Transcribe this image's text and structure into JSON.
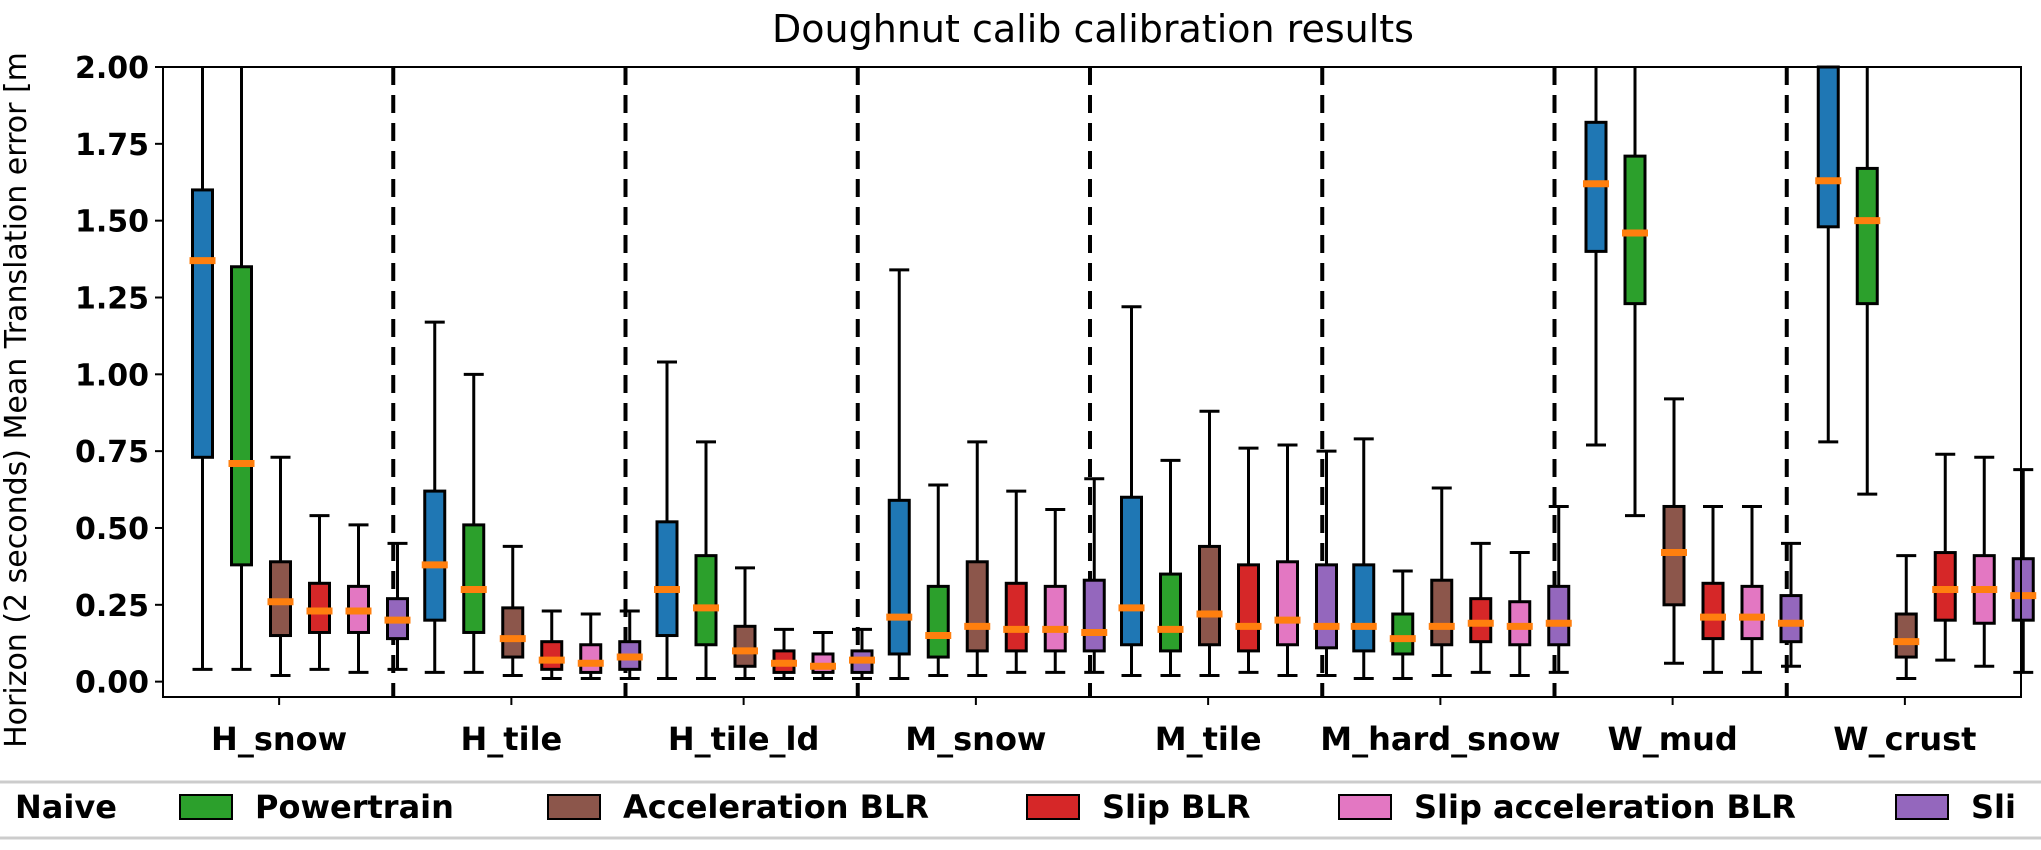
{
  "chart_data": {
    "type": "box",
    "title": "Doughnut calib calibration results",
    "ylabel": "Horizon (2 seconds) Mean Translation error [m]",
    "ylabel_visible": "Horizon (2 seconds) Mean Translation error [m",
    "xlabel": "",
    "ylim": [
      -0.05,
      2.0
    ],
    "yticks": [
      "0.00",
      "0.25",
      "0.50",
      "0.75",
      "1.00",
      "1.25",
      "1.50",
      "1.75",
      "2.00"
    ],
    "grid": false,
    "legend_position": "bottom",
    "categories": [
      "H_snow",
      "H_tile",
      "H_tile_ld",
      "M_snow",
      "M_tile",
      "M_hard_snow",
      "W_mud",
      "W_crust"
    ],
    "series": [
      {
        "name": "Naive",
        "color": "#1f77b4",
        "boxes": [
          {
            "whislo": 0.04,
            "q1": 0.73,
            "med": 1.37,
            "q3": 1.6,
            "whishi": 2.0
          },
          {
            "whislo": 0.03,
            "q1": 0.2,
            "med": 0.38,
            "q3": 0.62,
            "whishi": 1.17
          },
          {
            "whislo": 0.01,
            "q1": 0.15,
            "med": 0.3,
            "q3": 0.52,
            "whishi": 1.04
          },
          {
            "whislo": 0.01,
            "q1": 0.09,
            "med": 0.21,
            "q3": 0.59,
            "whishi": 1.34
          },
          {
            "whislo": 0.02,
            "q1": 0.12,
            "med": 0.24,
            "q3": 0.6,
            "whishi": 1.22
          },
          {
            "whislo": 0.01,
            "q1": 0.1,
            "med": 0.18,
            "q3": 0.38,
            "whishi": 0.79
          },
          {
            "whislo": 0.77,
            "q1": 1.4,
            "med": 1.62,
            "q3": 1.82,
            "whishi": 2.0
          },
          {
            "whislo": 0.78,
            "q1": 1.48,
            "med": 1.63,
            "q3": 2.0,
            "whishi": 2.0
          }
        ]
      },
      {
        "name": "Powertrain",
        "color": "#2ca02c",
        "boxes": [
          {
            "whislo": 0.04,
            "q1": 0.38,
            "med": 0.71,
            "q3": 1.35,
            "whishi": 2.0
          },
          {
            "whislo": 0.03,
            "q1": 0.16,
            "med": 0.3,
            "q3": 0.51,
            "whishi": 1.0
          },
          {
            "whislo": 0.01,
            "q1": 0.12,
            "med": 0.24,
            "q3": 0.41,
            "whishi": 0.78
          },
          {
            "whislo": 0.02,
            "q1": 0.08,
            "med": 0.15,
            "q3": 0.31,
            "whishi": 0.64
          },
          {
            "whislo": 0.02,
            "q1": 0.1,
            "med": 0.17,
            "q3": 0.35,
            "whishi": 0.72
          },
          {
            "whislo": 0.01,
            "q1": 0.09,
            "med": 0.14,
            "q3": 0.22,
            "whishi": 0.36
          },
          {
            "whislo": 0.54,
            "q1": 1.23,
            "med": 1.46,
            "q3": 1.71,
            "whishi": 2.0
          },
          {
            "whislo": 0.61,
            "q1": 1.23,
            "med": 1.5,
            "q3": 1.67,
            "whishi": 2.0
          }
        ]
      },
      {
        "name": "Acceleration BLR",
        "color": "#8c564b",
        "boxes": [
          {
            "whislo": 0.02,
            "q1": 0.15,
            "med": 0.26,
            "q3": 0.39,
            "whishi": 0.73
          },
          {
            "whislo": 0.02,
            "q1": 0.08,
            "med": 0.14,
            "q3": 0.24,
            "whishi": 0.44
          },
          {
            "whislo": 0.01,
            "q1": 0.05,
            "med": 0.1,
            "q3": 0.18,
            "whishi": 0.37
          },
          {
            "whislo": 0.02,
            "q1": 0.1,
            "med": 0.18,
            "q3": 0.39,
            "whishi": 0.78
          },
          {
            "whislo": 0.02,
            "q1": 0.12,
            "med": 0.22,
            "q3": 0.44,
            "whishi": 0.88
          },
          {
            "whislo": 0.02,
            "q1": 0.12,
            "med": 0.18,
            "q3": 0.33,
            "whishi": 0.63
          },
          {
            "whislo": 0.06,
            "q1": 0.25,
            "med": 0.42,
            "q3": 0.57,
            "whishi": 0.92
          },
          {
            "whislo": 0.01,
            "q1": 0.08,
            "med": 0.13,
            "q3": 0.22,
            "whishi": 0.41
          }
        ]
      },
      {
        "name": "Slip BLR",
        "color": "#d62728",
        "boxes": [
          {
            "whislo": 0.04,
            "q1": 0.16,
            "med": 0.23,
            "q3": 0.32,
            "whishi": 0.54
          },
          {
            "whislo": 0.01,
            "q1": 0.04,
            "med": 0.07,
            "q3": 0.13,
            "whishi": 0.23
          },
          {
            "whislo": 0.01,
            "q1": 0.03,
            "med": 0.06,
            "q3": 0.1,
            "whishi": 0.17
          },
          {
            "whislo": 0.03,
            "q1": 0.1,
            "med": 0.17,
            "q3": 0.32,
            "whishi": 0.62
          },
          {
            "whislo": 0.03,
            "q1": 0.1,
            "med": 0.18,
            "q3": 0.38,
            "whishi": 0.76
          },
          {
            "whislo": 0.03,
            "q1": 0.13,
            "med": 0.19,
            "q3": 0.27,
            "whishi": 0.45
          },
          {
            "whislo": 0.03,
            "q1": 0.14,
            "med": 0.21,
            "q3": 0.32,
            "whishi": 0.57
          },
          {
            "whislo": 0.07,
            "q1": 0.2,
            "med": 0.3,
            "q3": 0.42,
            "whishi": 0.74
          }
        ]
      },
      {
        "name": "Slip acceleration BLR",
        "color": "#e377c2",
        "boxes": [
          {
            "whislo": 0.03,
            "q1": 0.16,
            "med": 0.23,
            "q3": 0.31,
            "whishi": 0.51
          },
          {
            "whislo": 0.01,
            "q1": 0.03,
            "med": 0.06,
            "q3": 0.12,
            "whishi": 0.22
          },
          {
            "whislo": 0.01,
            "q1": 0.03,
            "med": 0.05,
            "q3": 0.09,
            "whishi": 0.16
          },
          {
            "whislo": 0.03,
            "q1": 0.1,
            "med": 0.17,
            "q3": 0.31,
            "whishi": 0.56
          },
          {
            "whislo": 0.02,
            "q1": 0.12,
            "med": 0.2,
            "q3": 0.39,
            "whishi": 0.77
          },
          {
            "whislo": 0.02,
            "q1": 0.12,
            "med": 0.18,
            "q3": 0.26,
            "whishi": 0.42
          },
          {
            "whislo": 0.03,
            "q1": 0.14,
            "med": 0.21,
            "q3": 0.31,
            "whishi": 0.57
          },
          {
            "whislo": 0.05,
            "q1": 0.19,
            "med": 0.3,
            "q3": 0.41,
            "whishi": 0.73
          }
        ]
      },
      {
        "name": "Sli",
        "color": "#9467bd",
        "boxes": [
          {
            "whislo": 0.04,
            "q1": 0.14,
            "med": 0.2,
            "q3": 0.27,
            "whishi": 0.45
          },
          {
            "whislo": 0.01,
            "q1": 0.04,
            "med": 0.08,
            "q3": 0.13,
            "whishi": 0.23
          },
          {
            "whislo": 0.01,
            "q1": 0.03,
            "med": 0.07,
            "q3": 0.1,
            "whishi": 0.17
          },
          {
            "whislo": 0.03,
            "q1": 0.1,
            "med": 0.16,
            "q3": 0.33,
            "whishi": 0.66
          },
          {
            "whislo": 0.02,
            "q1": 0.11,
            "med": 0.18,
            "q3": 0.38,
            "whishi": 0.75
          },
          {
            "whislo": 0.03,
            "q1": 0.12,
            "med": 0.19,
            "q3": 0.31,
            "whishi": 0.57
          },
          {
            "whislo": 0.05,
            "q1": 0.13,
            "med": 0.19,
            "q3": 0.28,
            "whishi": 0.45
          },
          {
            "whislo": 0.03,
            "q1": 0.2,
            "med": 0.28,
            "q3": 0.4,
            "whishi": 0.69
          }
        ]
      }
    ],
    "median_color": "#ff7f0e",
    "separator_style": "dashed"
  }
}
